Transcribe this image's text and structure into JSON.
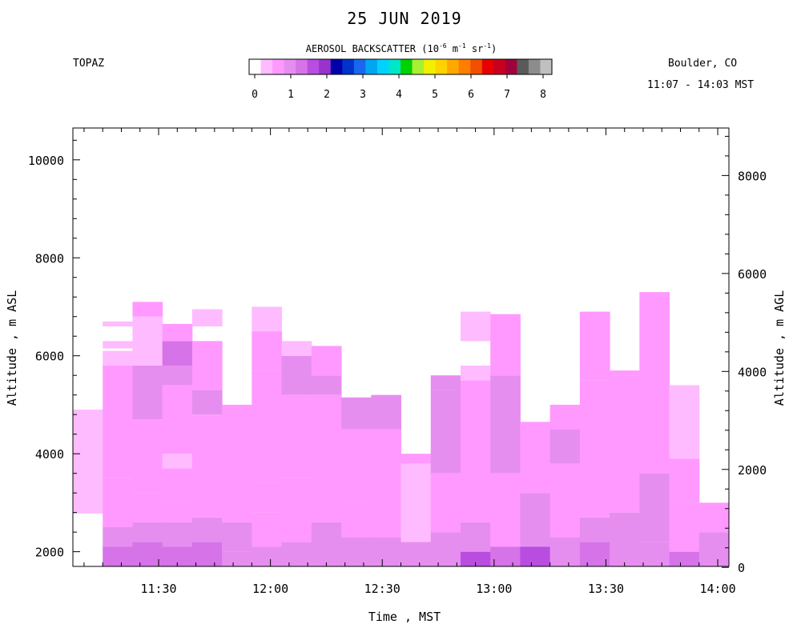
{
  "header": {
    "title": "25 JUN 2019",
    "instrument": "TOPAZ",
    "location": "Boulder, CO",
    "time_range": "11:07 - 14:03 MST"
  },
  "colorbar": {
    "title": "AEROSOL BACKSCATTER (10",
    "title_exp1": "-6",
    "title_mid1": " m",
    "title_exp2": "-1",
    "title_mid2": " sr",
    "title_exp3": "-1",
    "title_end": ")",
    "ticks": [
      "0",
      "1",
      "2",
      "3",
      "4",
      "5",
      "6",
      "7",
      "8"
    ],
    "colors": [
      "#ffffff",
      "#ffbbff",
      "#ff99ff",
      "#e68ef0",
      "#d673e8",
      "#b84de0",
      "#9933cc",
      "#0000a8",
      "#0033cc",
      "#1a66ee",
      "#00a6f0",
      "#00d2ff",
      "#00e6c8",
      "#00d200",
      "#a8f032",
      "#f0f000",
      "#ffd200",
      "#ffa800",
      "#ff7e00",
      "#f05000",
      "#e60000",
      "#c8001e",
      "#a0003c",
      "#5a5a5a",
      "#8c8c8c",
      "#c0c0c0"
    ]
  },
  "chart_data": {
    "type": "heatmap",
    "title": "25 JUN 2019",
    "xlabel": "Time , MST",
    "ylabel": "Altitude , m ASL",
    "ylabel_right": "Altitude , m AGL",
    "xticks": [
      "11:30",
      "12:00",
      "12:30",
      "13:00",
      "13:30",
      "14:00"
    ],
    "xlim": [
      "11:07",
      "14:03"
    ],
    "ylim": [
      1700,
      10650
    ],
    "yticks_left": [
      2000,
      4000,
      6000,
      8000,
      10000
    ],
    "yticks_right": [
      0,
      2000,
      4000,
      6000,
      8000
    ],
    "y_right_offset_m": 1680,
    "value_units": "10^-6 m^-1 sr^-1",
    "clim": [
      0,
      8
    ],
    "profiles": [
      {
        "start": "11:07",
        "end": "11:15",
        "layers": [
          {
            "bottom": 2780,
            "top": 4550,
            "value": 0.3
          },
          {
            "bottom": 4550,
            "top": 4900,
            "value": 0.3
          }
        ]
      },
      {
        "start": "11:15",
        "end": "11:23",
        "layers": [
          {
            "bottom": 1700,
            "top": 2100,
            "value": 1.1
          },
          {
            "bottom": 2100,
            "top": 2500,
            "value": 0.85
          },
          {
            "bottom": 2500,
            "top": 3500,
            "value": 0.55
          },
          {
            "bottom": 3500,
            "top": 5800,
            "value": 0.55
          },
          {
            "bottom": 5800,
            "top": 6100,
            "value": 0.3
          },
          {
            "bottom": 6150,
            "top": 6300,
            "value": 0.2
          },
          {
            "bottom": 6600,
            "top": 6700,
            "value": 0.3
          }
        ]
      },
      {
        "start": "11:23",
        "end": "11:31",
        "layers": [
          {
            "bottom": 1700,
            "top": 2200,
            "value": 1.2
          },
          {
            "bottom": 2200,
            "top": 2600,
            "value": 0.85
          },
          {
            "bottom": 2600,
            "top": 3200,
            "value": 0.45
          },
          {
            "bottom": 3200,
            "top": 4700,
            "value": 0.6
          },
          {
            "bottom": 4700,
            "top": 5800,
            "value": 0.75
          },
          {
            "bottom": 5800,
            "top": 6800,
            "value": 0.3
          },
          {
            "bottom": 6800,
            "top": 7100,
            "value": 0.4
          }
        ]
      },
      {
        "start": "11:31",
        "end": "11:39",
        "layers": [
          {
            "bottom": 1700,
            "top": 2100,
            "value": 1.1
          },
          {
            "bottom": 2100,
            "top": 2600,
            "value": 0.8
          },
          {
            "bottom": 2600,
            "top": 3000,
            "value": 0.45
          },
          {
            "bottom": 3000,
            "top": 3700,
            "value": 0.55
          },
          {
            "bottom": 3700,
            "top": 4000,
            "value": 0.3
          },
          {
            "bottom": 4000,
            "top": 5400,
            "value": 0.6
          },
          {
            "bottom": 5400,
            "top": 5800,
            "value": 0.8
          },
          {
            "bottom": 5800,
            "top": 6300,
            "value": 1.15
          },
          {
            "bottom": 6300,
            "top": 6650,
            "value": 0.5
          }
        ]
      },
      {
        "start": "11:39",
        "end": "11:47",
        "layers": [
          {
            "bottom": 1700,
            "top": 2200,
            "value": 1.0
          },
          {
            "bottom": 2200,
            "top": 2700,
            "value": 0.7
          },
          {
            "bottom": 2700,
            "top": 4800,
            "value": 0.6
          },
          {
            "bottom": 4800,
            "top": 5300,
            "value": 0.8
          },
          {
            "bottom": 5300,
            "top": 6300,
            "value": 0.4
          },
          {
            "bottom": 6600,
            "top": 6950,
            "value": 0.3
          }
        ]
      },
      {
        "start": "11:47",
        "end": "11:55",
        "layers": [
          {
            "bottom": 1700,
            "top": 2000,
            "value": 0.9
          },
          {
            "bottom": 2000,
            "top": 2600,
            "value": 0.65
          },
          {
            "bottom": 2600,
            "top": 5000,
            "value": 0.55
          }
        ]
      },
      {
        "start": "11:55",
        "end": "12:03",
        "layers": [
          {
            "bottom": 1700,
            "top": 2100,
            "value": 0.9
          },
          {
            "bottom": 2100,
            "top": 2800,
            "value": 0.5
          },
          {
            "bottom": 2800,
            "top": 3400,
            "value": 0.6
          },
          {
            "bottom": 3400,
            "top": 5700,
            "value": 0.55
          },
          {
            "bottom": 5700,
            "top": 6500,
            "value": 0.4
          },
          {
            "bottom": 6500,
            "top": 7000,
            "value": 0.3
          }
        ]
      },
      {
        "start": "12:03",
        "end": "12:11",
        "layers": [
          {
            "bottom": 1700,
            "top": 2200,
            "value": 0.9
          },
          {
            "bottom": 2200,
            "top": 3500,
            "value": 0.55
          },
          {
            "bottom": 3500,
            "top": 5200,
            "value": 0.6
          },
          {
            "bottom": 5200,
            "top": 6000,
            "value": 0.7
          },
          {
            "bottom": 6000,
            "top": 6300,
            "value": 0.3
          }
        ]
      },
      {
        "start": "12:11",
        "end": "12:19",
        "layers": [
          {
            "bottom": 1700,
            "top": 2600,
            "value": 0.8
          },
          {
            "bottom": 2600,
            "top": 3300,
            "value": 0.5
          },
          {
            "bottom": 3300,
            "top": 5200,
            "value": 0.6
          },
          {
            "bottom": 5200,
            "top": 5600,
            "value": 0.85
          },
          {
            "bottom": 5600,
            "top": 6200,
            "value": 0.45
          }
        ]
      },
      {
        "start": "12:19",
        "end": "12:27",
        "layers": [
          {
            "bottom": 1700,
            "top": 2300,
            "value": 0.85
          },
          {
            "bottom": 2300,
            "top": 3000,
            "value": 0.5
          },
          {
            "bottom": 3000,
            "top": 4500,
            "value": 0.6
          },
          {
            "bottom": 4500,
            "top": 5150,
            "value": 0.8
          }
        ]
      },
      {
        "start": "12:27",
        "end": "12:35",
        "layers": [
          {
            "bottom": 1700,
            "top": 2300,
            "value": 0.8
          },
          {
            "bottom": 2300,
            "top": 2900,
            "value": 0.45
          },
          {
            "bottom": 2900,
            "top": 4500,
            "value": 0.6
          },
          {
            "bottom": 4500,
            "top": 5200,
            "value": 0.75
          }
        ]
      },
      {
        "start": "12:35",
        "end": "12:43",
        "layers": [
          {
            "bottom": 1700,
            "top": 2200,
            "value": 0.85
          },
          {
            "bottom": 2200,
            "top": 3800,
            "value": 0.3
          },
          {
            "bottom": 3800,
            "top": 4000,
            "value": 0.4
          }
        ]
      },
      {
        "start": "12:43",
        "end": "12:51",
        "layers": [
          {
            "bottom": 1700,
            "top": 2400,
            "value": 0.85
          },
          {
            "bottom": 2400,
            "top": 3600,
            "value": 0.6
          },
          {
            "bottom": 3600,
            "top": 5300,
            "value": 0.7
          },
          {
            "bottom": 5300,
            "top": 5600,
            "value": 0.85
          }
        ]
      },
      {
        "start": "12:51",
        "end": "12:59",
        "layers": [
          {
            "bottom": 1700,
            "top": 2000,
            "value": 1.5
          },
          {
            "bottom": 2000,
            "top": 2600,
            "value": 0.8
          },
          {
            "bottom": 2600,
            "top": 5500,
            "value": 0.55
          },
          {
            "bottom": 5500,
            "top": 5800,
            "value": 0.3
          },
          {
            "bottom": 6300,
            "top": 6900,
            "value": 0.3
          }
        ]
      },
      {
        "start": "12:59",
        "end": "13:07",
        "layers": [
          {
            "bottom": 1700,
            "top": 2100,
            "value": 1.1
          },
          {
            "bottom": 2100,
            "top": 3600,
            "value": 0.6
          },
          {
            "bottom": 3600,
            "top": 5600,
            "value": 0.7
          },
          {
            "bottom": 5600,
            "top": 6850,
            "value": 0.4
          }
        ]
      },
      {
        "start": "13:07",
        "end": "13:15",
        "layers": [
          {
            "bottom": 1700,
            "top": 2100,
            "value": 1.3
          },
          {
            "bottom": 2100,
            "top": 3200,
            "value": 0.7
          },
          {
            "bottom": 3200,
            "top": 4650,
            "value": 0.6
          }
        ]
      },
      {
        "start": "13:15",
        "end": "13:23",
        "layers": [
          {
            "bottom": 1700,
            "top": 2300,
            "value": 0.9
          },
          {
            "bottom": 2300,
            "top": 3800,
            "value": 0.35
          },
          {
            "bottom": 3800,
            "top": 4500,
            "value": 0.75
          },
          {
            "bottom": 4500,
            "top": 5000,
            "value": 0.45
          }
        ]
      },
      {
        "start": "13:23",
        "end": "13:31",
        "layers": [
          {
            "bottom": 1700,
            "top": 2200,
            "value": 1.2
          },
          {
            "bottom": 2200,
            "top": 2700,
            "value": 0.75
          },
          {
            "bottom": 2700,
            "top": 5500,
            "value": 0.6
          },
          {
            "bottom": 5500,
            "top": 6900,
            "value": 0.4
          }
        ]
      },
      {
        "start": "13:31",
        "end": "13:39",
        "layers": [
          {
            "bottom": 1700,
            "top": 2800,
            "value": 0.7
          },
          {
            "bottom": 2800,
            "top": 5600,
            "value": 0.6
          },
          {
            "bottom": 5600,
            "top": 5700,
            "value": 0.5
          }
        ]
      },
      {
        "start": "13:39",
        "end": "13:47",
        "layers": [
          {
            "bottom": 1700,
            "top": 2200,
            "value": 0.9
          },
          {
            "bottom": 2200,
            "top": 3600,
            "value": 0.7
          },
          {
            "bottom": 3600,
            "top": 5800,
            "value": 0.6
          },
          {
            "bottom": 5800,
            "top": 7300,
            "value": 0.35
          }
        ]
      },
      {
        "start": "13:47",
        "end": "13:55",
        "layers": [
          {
            "bottom": 1700,
            "top": 2000,
            "value": 1.1
          },
          {
            "bottom": 2000,
            "top": 3000,
            "value": 0.6
          },
          {
            "bottom": 3000,
            "top": 3900,
            "value": 0.55
          },
          {
            "bottom": 3900,
            "top": 5400,
            "value": 0.3
          }
        ]
      },
      {
        "start": "13:55",
        "end": "14:03",
        "layers": [
          {
            "bottom": 1700,
            "top": 2400,
            "value": 0.8
          },
          {
            "bottom": 2400,
            "top": 3000,
            "value": 0.6
          }
        ]
      }
    ]
  }
}
